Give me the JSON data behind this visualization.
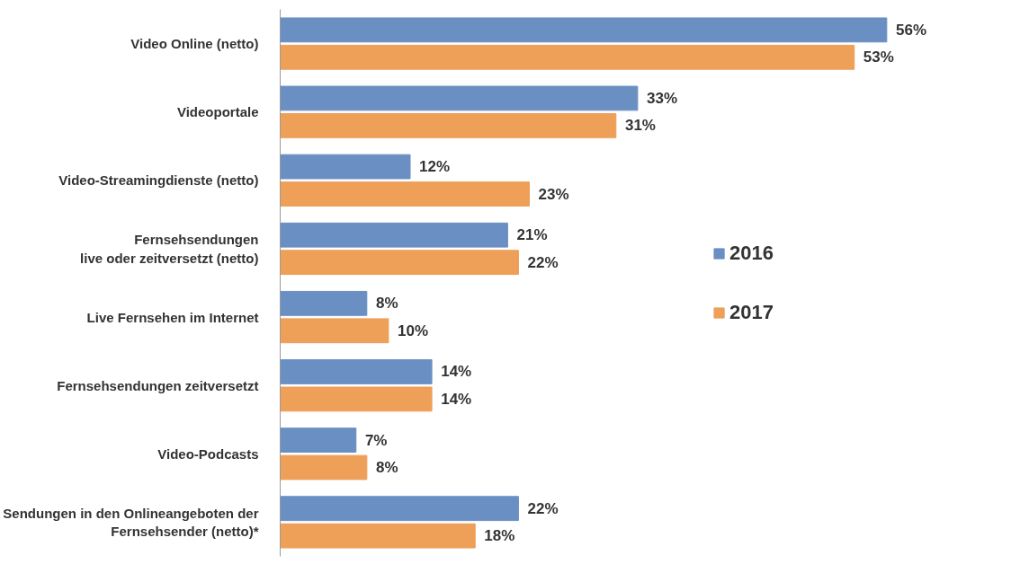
{
  "chart_data": {
    "type": "bar",
    "orientation": "horizontal",
    "legend": "right",
    "grid": false,
    "categories": [
      "Video Online (netto)",
      "Videoportale",
      "Video-Streamingdienste (netto)",
      "Fernsehsendungen\nlive oder zeitversetzt (netto)",
      "Live Fernsehen im Internet",
      "Fernsehsendungen zeitversetzt",
      "Video-Podcasts",
      "Sendungen in den Onlineangeboten der\nFernsehsender (netto)*"
    ],
    "series": [
      {
        "name": "2016",
        "color": "#6a8fc2",
        "values": [
          56,
          33,
          12,
          21,
          8,
          14,
          7,
          22
        ],
        "value_labels": [
          "56%",
          "33%",
          "12%",
          "21%",
          "8%",
          "14%",
          "7%",
          "22%"
        ]
      },
      {
        "name": "2017",
        "color": "#ee9f58",
        "values": [
          53,
          31,
          23,
          22,
          10,
          14,
          8,
          18
        ],
        "value_labels": [
          "53%",
          "31%",
          "23%",
          "22%",
          "10%",
          "14%",
          "8%",
          "18%"
        ]
      }
    ]
  }
}
